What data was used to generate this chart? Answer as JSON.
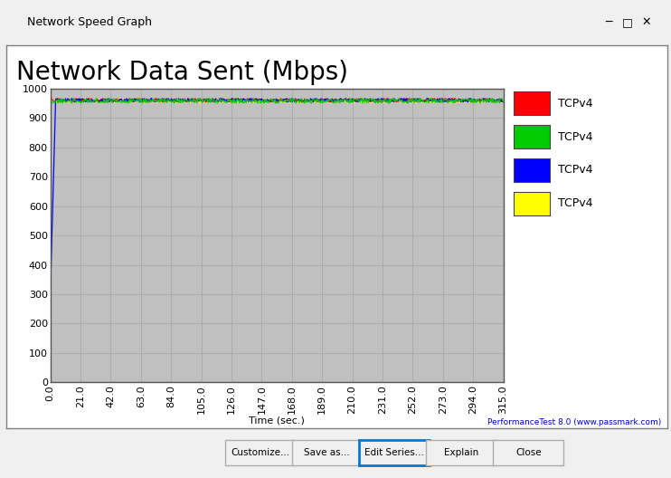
{
  "title": "Network Data Sent (Mbps)",
  "window_title": "Network Speed Graph",
  "xlabel": "Time (sec.)",
  "xlim": [
    0,
    315
  ],
  "ylim": [
    0,
    1000
  ],
  "xticks": [
    0.0,
    21.0,
    42.0,
    63.0,
    84.0,
    105.0,
    126.0,
    147.0,
    168.0,
    189.0,
    210.0,
    231.0,
    252.0,
    273.0,
    294.0,
    315.0
  ],
  "yticks": [
    0,
    100,
    200,
    300,
    400,
    500,
    600,
    700,
    800,
    900,
    1000
  ],
  "window_bg": "#f0f0f0",
  "titlebar_bg": "#f0f0f0",
  "inner_panel_bg": "#ffffff",
  "plot_bg": "#c0c0c0",
  "grid_color": "#a9a9a9",
  "series": [
    {
      "label": "TCPv4",
      "color": "#ff0000",
      "base": 960,
      "noise": 6
    },
    {
      "label": "TCPv4",
      "color": "#00cc00",
      "base": 958,
      "noise": 8
    },
    {
      "label": "TCPv4",
      "color": "#0000ff",
      "base": 960,
      "noise": 6,
      "start_val": 300
    },
    {
      "label": "TCPv4",
      "color": "#ffff00",
      "base": 957,
      "noise": 6
    }
  ],
  "watermark": "PerformanceTest 8.0 (www.passmark.com)",
  "n_points": 600,
  "title_fontsize": 20,
  "axis_tick_fontsize": 8,
  "xlabel_fontsize": 8,
  "legend_fontsize": 9,
  "window_title_fontsize": 9,
  "button_labels": [
    "Customize...",
    "Save as...",
    "Edit Series...",
    "Explain",
    "Close"
  ],
  "edit_series_highlighted": true
}
